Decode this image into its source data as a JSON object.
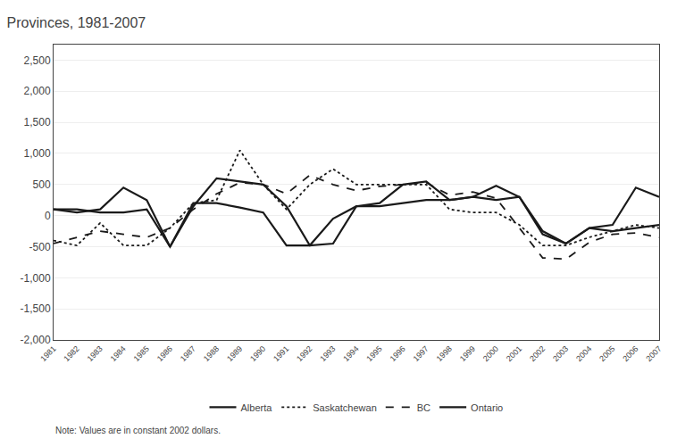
{
  "chart_data": {
    "type": "line",
    "title": "Provinces, 1981-2007",
    "annotations": [
      "Note: Values are in constant 2002 dollars."
    ],
    "x": [
      1981,
      1982,
      1983,
      1984,
      1985,
      1986,
      1987,
      1988,
      1989,
      1990,
      1991,
      1992,
      1993,
      1994,
      1995,
      1996,
      1997,
      1998,
      1999,
      2000,
      2001,
      2002,
      2003,
      2004,
      2005,
      2006,
      2007
    ],
    "series": [
      {
        "name": "Alberta",
        "color": "#1a1a1a",
        "line_style": "solid",
        "values": [
          100,
          50,
          100,
          450,
          250,
          -500,
          150,
          600,
          550,
          500,
          150,
          -480,
          -450,
          150,
          200,
          500,
          550,
          250,
          300,
          480,
          300,
          -300,
          -450,
          -200,
          -150,
          450,
          300
        ]
      },
      {
        "name": "Saskatchewan",
        "color": "#1a1a1a",
        "line_style": "dotted",
        "values": [
          -400,
          -480,
          -120,
          -480,
          -480,
          -200,
          200,
          250,
          1050,
          500,
          100,
          500,
          750,
          500,
          500,
          500,
          500,
          100,
          50,
          50,
          -150,
          -480,
          -480,
          -350,
          -250,
          -150,
          -200
        ]
      },
      {
        "name": "BC",
        "color": "#1a1a1a",
        "line_style": "dashed",
        "values": [
          -450,
          -350,
          -250,
          -300,
          -350,
          -200,
          100,
          350,
          530,
          500,
          350,
          650,
          500,
          400,
          470,
          500,
          530,
          330,
          380,
          280,
          -200,
          -680,
          -700,
          -430,
          -300,
          -280,
          -350
        ]
      },
      {
        "name": "Ontario",
        "color": "#1a1a1a",
        "line_style": "solid",
        "values": [
          100,
          100,
          50,
          50,
          100,
          -500,
          200,
          200,
          130,
          50,
          -480,
          -480,
          -50,
          150,
          150,
          200,
          250,
          250,
          300,
          250,
          300,
          -250,
          -450,
          -200,
          -250,
          -200,
          -150
        ]
      }
    ],
    "xlim": [
      1981,
      2007
    ],
    "xticks": [
      1981,
      1982,
      1983,
      1984,
      1985,
      1986,
      1987,
      1988,
      1989,
      1990,
      1991,
      1992,
      1993,
      1994,
      1995,
      1996,
      1997,
      1998,
      1999,
      2000,
      2001,
      2002,
      2003,
      2004,
      2005,
      2006,
      2007
    ],
    "ylim": [
      -2000,
      2750
    ],
    "yticks": [
      {
        "value": -2000,
        "label": "-2,000"
      },
      {
        "value": -1500,
        "label": "-1,500"
      },
      {
        "value": -1000,
        "label": "-1,000"
      },
      -500,
      0,
      500,
      {
        "value": 1000,
        "label": "1,000"
      },
      {
        "value": 1500,
        "label": "1,500"
      },
      {
        "value": 2000,
        "label": "2,000"
      },
      {
        "value": 2500,
        "label": "2,500"
      }
    ],
    "grid": "y",
    "legend": "bottom"
  }
}
